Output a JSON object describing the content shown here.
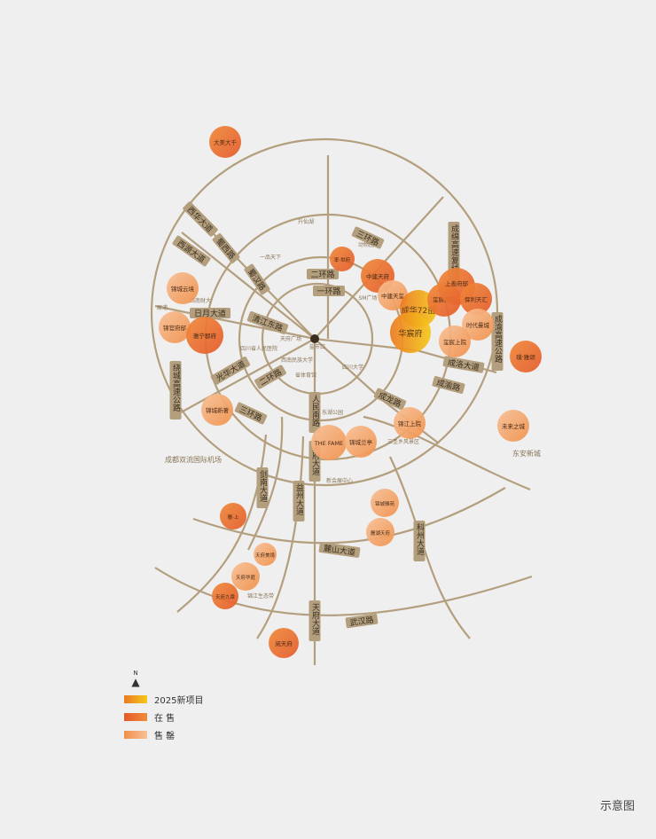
{
  "colors": {
    "road": "#b39f7e",
    "label_bg": "#b39f7e",
    "label_text": "#3a2e20",
    "new": "#f2b21c",
    "sale": "#e8632c",
    "soldout": "#f3a467",
    "place": "#8a7558"
  },
  "road_labels": [
    "三环路",
    "二环路",
    "一环路",
    "日月大道",
    "清江东路",
    "二环路",
    "三环路",
    "绕城高速公路",
    "人民南路",
    "剑南大道",
    "益州大道",
    "天府大道",
    "麓山大道",
    "天府大道",
    "武汉路",
    "科州大道",
    "成洛大道",
    "成渝路",
    "成龙路",
    "成渝高速公路",
    "成绵高速复线",
    "西华大道",
    "蜀西路",
    "西源大道",
    "蜀汉路",
    "光华大道"
  ],
  "places": [
    "升仙湖",
    "一品天下",
    "动物园",
    "SM广场",
    "天府广场",
    "盐市口",
    "西南民族大学",
    "四川大学",
    "东湖公园",
    "三圣乡风景区",
    "成都双流国际机场",
    "新会展中心",
    "锦江生态带",
    "东安新城",
    "西南财大",
    "四川省人民医院",
    "省体育馆",
    "犀浦"
  ],
  "projects": [
    {
      "name": "大美大千",
      "status": "sale"
    },
    {
      "name": "锦城云境",
      "status": "soldout"
    },
    {
      "name": "锦官府邸",
      "status": "soldout"
    },
    {
      "name": "雅宁郡府",
      "status": "sale"
    },
    {
      "name": "峯·世府",
      "status": "sale"
    },
    {
      "name": "中建天府",
      "status": "sale"
    },
    {
      "name": "中建天玺",
      "status": "soldout"
    },
    {
      "name": "成华72亩",
      "status": "new"
    },
    {
      "name": "华宸府",
      "status": "new"
    },
    {
      "name": "玺宸南湾",
      "status": "sale"
    },
    {
      "name": "上善府邸",
      "status": "sale"
    },
    {
      "name": "保利天汇",
      "status": "sale"
    },
    {
      "name": "时代曼城",
      "status": "soldout"
    },
    {
      "name": "玺宸上院",
      "status": "soldout"
    },
    {
      "name": "璞·雅颂",
      "status": "sale"
    },
    {
      "name": "未来之城",
      "status": "soldout"
    },
    {
      "name": "锦城新著",
      "status": "soldout"
    },
    {
      "name": "THE FAME",
      "status": "soldout"
    },
    {
      "name": "锦城兰亭",
      "status": "soldout"
    },
    {
      "name": "锦江上院",
      "status": "soldout"
    },
    {
      "name": "锦城雅苑",
      "status": "soldout"
    },
    {
      "name": "麓湖天府",
      "status": "soldout"
    },
    {
      "name": "麓·上",
      "status": "sale"
    },
    {
      "name": "天府美境",
      "status": "soldout"
    },
    {
      "name": "天府华庭",
      "status": "soldout"
    },
    {
      "name": "天府九章",
      "status": "sale"
    },
    {
      "name": "阅天府",
      "status": "sale"
    }
  ],
  "legend": {
    "north": "N",
    "items": [
      {
        "label": "2025新项目",
        "status": "new"
      },
      {
        "label": "在 售",
        "status": "sale"
      },
      {
        "label": "售 罄",
        "status": "soldout"
      }
    ]
  },
  "note": "示意图"
}
